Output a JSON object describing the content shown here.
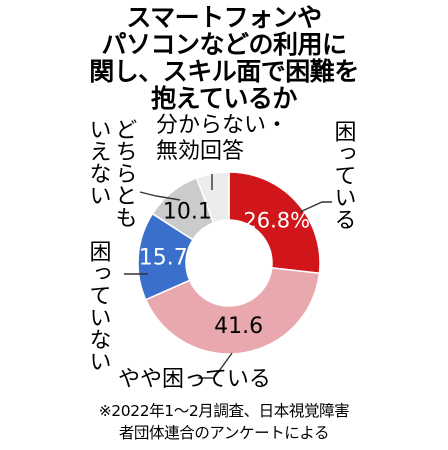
{
  "title_lines": [
    "スマートフォンや",
    "パソコンなどの利用に",
    "関し、スキル面で困難を",
    "抱えているか"
  ],
  "chart_data": {
    "type": "pie",
    "donut": true,
    "title": "スマートフォンやパソコンなどの利用に関し、スキル面で困難を抱えているか",
    "categories": [
      "困っている",
      "やや困っている",
      "困っていない",
      "どちらともいえない",
      "分からない・無効回答"
    ],
    "values": [
      26.8,
      41.6,
      15.7,
      10.1,
      5.8
    ],
    "value_labels": [
      "26.8%",
      "41.6",
      "15.7",
      "10.1",
      ""
    ],
    "colors": [
      "#d0161b",
      "#e9a8ae",
      "#3b6fcc",
      "#cbcbcb",
      "#ececec"
    ],
    "value_label_colors": [
      "#ffffff",
      "#000000",
      "#ffffff",
      "#000000",
      "#000000"
    ]
  },
  "labels": {
    "komatteiru": "困っている",
    "yaya": "やや困っている",
    "komatteinai": "困っていない",
    "dochira_line1": "どちらとも",
    "dochira_line2": "いえない",
    "wakaranai_line1": "分からない・",
    "wakaranai_line2": "無効回答"
  },
  "note_lines": [
    "※2022年1～2月調査、日本視覚障害",
    "者団体連合のアンケートによる"
  ],
  "colors": {
    "leader": "#333333"
  }
}
